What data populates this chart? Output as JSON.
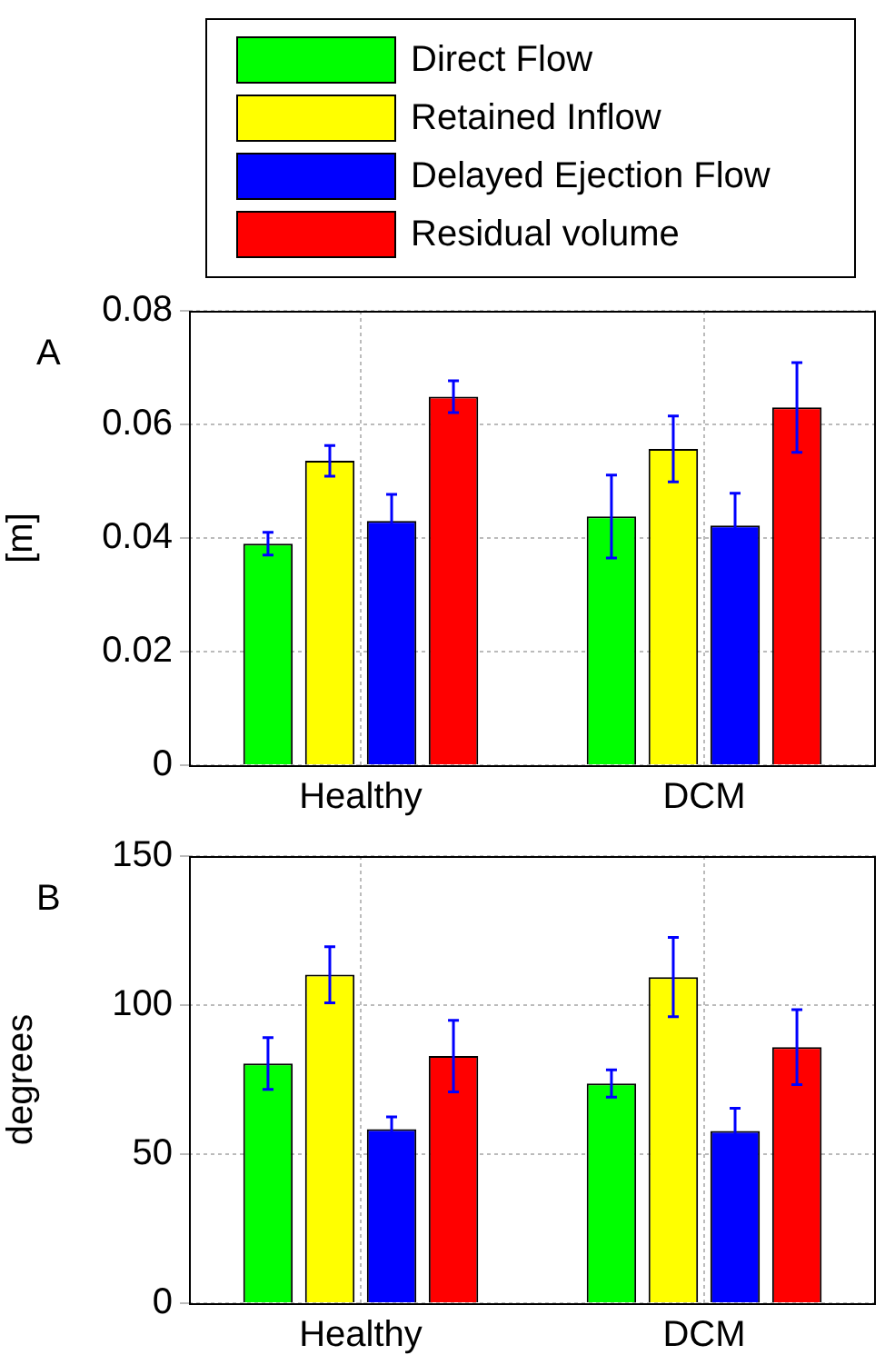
{
  "chart_data": [
    {
      "type": "bar",
      "title": "A",
      "ylabel": "[m]",
      "categories": [
        "Healthy",
        "DCM"
      ],
      "ylim": [
        0,
        0.08
      ],
      "yticks": [
        0,
        0.02,
        0.04,
        0.06,
        0.08
      ],
      "grid": true,
      "legend": "top",
      "series": [
        {
          "name": "Direct Flow",
          "color": "#00ff00",
          "values": [
            0.039,
            0.0438
          ],
          "errors": [
            0.002,
            0.0073
          ]
        },
        {
          "name": "Retained Inflow",
          "color": "#ffff00",
          "values": [
            0.0536,
            0.0557
          ],
          "errors": [
            0.0027,
            0.0058
          ]
        },
        {
          "name": "Delayed Ejection Flow",
          "color": "#0000ff",
          "values": [
            0.043,
            0.0422
          ],
          "errors": [
            0.0047,
            0.0057
          ]
        },
        {
          "name": "Residual volume",
          "color": "#ff0000",
          "values": [
            0.0649,
            0.063
          ],
          "errors": [
            0.0028,
            0.0079
          ]
        }
      ]
    },
    {
      "type": "bar",
      "title": "B",
      "ylabel": "degrees",
      "categories": [
        "Healthy",
        "DCM"
      ],
      "ylim": [
        0,
        150
      ],
      "yticks": [
        0,
        50,
        100,
        150
      ],
      "grid": true,
      "series": [
        {
          "color": "#00ff00",
          "values": [
            80.4,
            73.7
          ],
          "errors": [
            8.7,
            4.6
          ]
        },
        {
          "color": "#ffff00",
          "values": [
            110.2,
            109.4
          ],
          "errors": [
            9.4,
            13.3
          ]
        },
        {
          "color": "#0000ff",
          "values": [
            58.4,
            57.8
          ],
          "errors": [
            4.1,
            7.6
          ]
        },
        {
          "color": "#ff0000",
          "values": [
            82.9,
            85.9
          ],
          "errors": [
            12,
            12.6
          ]
        }
      ]
    }
  ]
}
